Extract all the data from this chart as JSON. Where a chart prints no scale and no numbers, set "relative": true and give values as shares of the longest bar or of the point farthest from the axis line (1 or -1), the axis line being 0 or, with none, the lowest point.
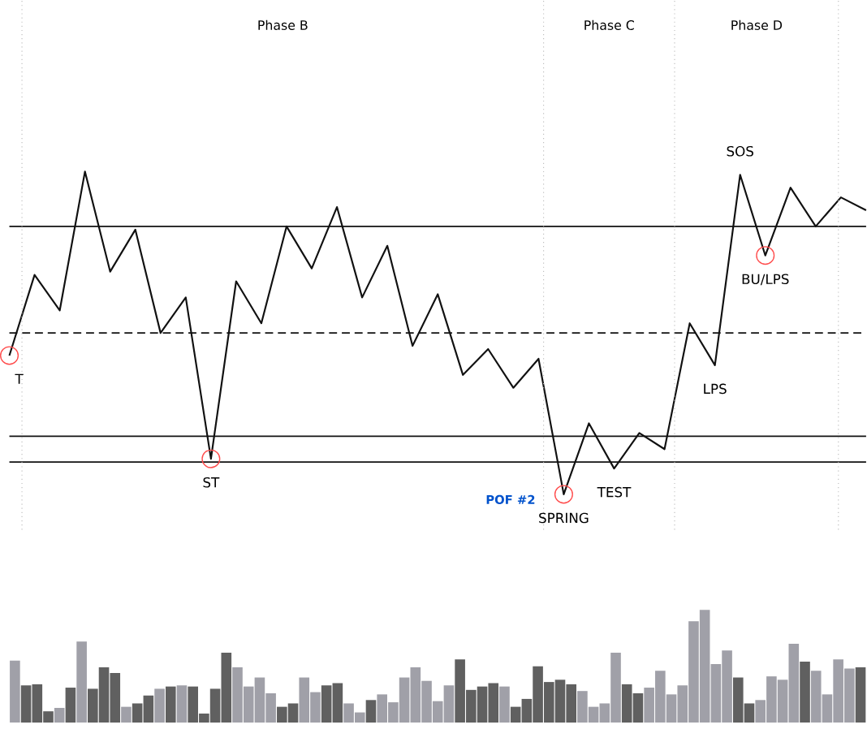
{
  "chart_data": [
    {
      "type": "line",
      "relative": true,
      "categories": [
        null,
        null,
        null,
        null,
        null,
        null,
        null,
        null,
        null,
        null,
        null,
        null,
        null,
        null,
        null,
        null,
        null,
        null,
        null,
        null,
        null,
        null,
        null,
        null,
        null,
        null,
        null,
        null,
        null,
        null,
        null,
        null,
        null,
        null,
        null
      ],
      "series": [
        {
          "type": "line",
          "color": "#111111",
          "marker": "none",
          "line_style": "solid",
          "values": [
            0.43,
            0.68,
            0.57,
            1.0,
            0.69,
            0.82,
            0.5,
            0.61,
            0.11,
            0.66,
            0.53,
            0.83,
            0.7,
            0.89,
            0.61,
            0.77,
            0.46,
            0.62,
            0.37,
            0.45,
            0.33,
            0.42,
            0.0,
            0.22,
            0.08,
            0.19,
            0.14,
            0.53,
            0.4,
            0.99,
            0.74,
            0.95,
            0.83,
            0.92,
            0.88
          ]
        }
      ],
      "ref_lines": [
        {
          "axis": "y",
          "value": 0.83,
          "line_style": "solid",
          "color": "#111111"
        },
        {
          "axis": "y",
          "value": 0.5,
          "line_style": "dashed",
          "color": "#111111"
        },
        {
          "axis": "y",
          "value": 0.18,
          "line_style": "solid",
          "color": "#111111"
        },
        {
          "axis": "y",
          "value": 0.1,
          "line_style": "solid",
          "color": "#111111"
        }
      ],
      "annotations": [
        "Phase B",
        "Phase C",
        "Phase D",
        {
          "text": "T",
          "y": 0.43
        },
        {
          "text": "ST",
          "y": 0.11
        },
        "POF #2",
        {
          "text": "SPRING",
          "y": 0.0
        },
        {
          "text": "TEST",
          "y": 0.08
        },
        {
          "text": "LPS",
          "y": 0.4
        },
        {
          "text": "SOS",
          "y": 0.99
        },
        {
          "text": "BU/LPS",
          "y": 0.74
        }
      ]
    },
    {
      "type": "bar",
      "relative": true,
      "categories": [
        null,
        null,
        null,
        null,
        null,
        null,
        null,
        null,
        null,
        null,
        null,
        null,
        null,
        null,
        null,
        null,
        null,
        null,
        null,
        null,
        null,
        null,
        null,
        null,
        null,
        null,
        null,
        null,
        null,
        null,
        null,
        null,
        null,
        null,
        null,
        null,
        null,
        null,
        null,
        null,
        null,
        null,
        null,
        null,
        null,
        null,
        null,
        null,
        null,
        null,
        null,
        null,
        null,
        null,
        null,
        null,
        null,
        null,
        null,
        null,
        null,
        null,
        null,
        null,
        null,
        null,
        null,
        null,
        null,
        null,
        null,
        null,
        null,
        null,
        null,
        null,
        null
      ],
      "values": [
        0.55,
        0.33,
        0.34,
        0.1,
        0.13,
        0.31,
        0.72,
        0.3,
        0.49,
        0.44,
        0.14,
        0.17,
        0.24,
        0.3,
        0.32,
        0.33,
        0.32,
        0.08,
        0.3,
        0.62,
        0.49,
        0.32,
        0.4,
        0.26,
        0.14,
        0.17,
        0.4,
        0.27,
        0.33,
        0.35,
        0.17,
        0.09,
        0.2,
        0.25,
        0.18,
        0.4,
        0.49,
        0.37,
        0.19,
        0.33,
        0.56,
        0.29,
        0.32,
        0.35,
        0.32,
        0.14,
        0.21,
        0.5,
        0.36,
        0.38,
        0.34,
        0.28,
        0.14,
        0.17,
        0.62,
        0.34,
        0.26,
        0.31,
        0.46,
        0.25,
        0.33,
        0.9,
        1.0,
        0.52,
        0.64,
        0.4,
        0.17,
        0.2,
        0.41,
        0.38,
        0.7,
        0.54,
        0.46,
        0.25,
        0.56,
        0.48,
        0.49
      ],
      "colors": [
        "#a0a0a8",
        "#606060",
        "#606060",
        "#606060",
        "#a0a0a8",
        "#606060",
        "#a0a0a8",
        "#606060",
        "#606060",
        "#606060",
        "#a0a0a8",
        "#606060",
        "#606060",
        "#a0a0a8",
        "#606060",
        "#a0a0a8",
        "#606060",
        "#606060",
        "#606060",
        "#606060",
        "#a0a0a8",
        "#a0a0a8",
        "#a0a0a8",
        "#a0a0a8",
        "#606060",
        "#606060",
        "#a0a0a8",
        "#a0a0a8",
        "#606060",
        "#606060",
        "#a0a0a8",
        "#a0a0a8",
        "#606060",
        "#a0a0a8",
        "#a0a0a8",
        "#a0a0a8",
        "#a0a0a8",
        "#a0a0a8",
        "#a0a0a8",
        "#a0a0a8",
        "#606060",
        "#606060",
        "#606060",
        "#606060",
        "#a0a0a8",
        "#606060",
        "#606060",
        "#606060",
        "#606060",
        "#606060",
        "#606060",
        "#a0a0a8",
        "#a0a0a8",
        "#a0a0a8",
        "#a0a0a8",
        "#606060",
        "#606060",
        "#a0a0a8",
        "#a0a0a8",
        "#a0a0a8",
        "#a0a0a8",
        "#a0a0a8",
        "#a0a0a8",
        "#a0a0a8",
        "#a0a0a8",
        "#606060",
        "#606060",
        "#a0a0a8",
        "#a0a0a8",
        "#a0a0a8",
        "#a0a0a8",
        "#606060",
        "#a0a0a8",
        "#a0a0a8",
        "#a0a0a8",
        "#a0a0a8",
        "#606060"
      ]
    }
  ]
}
